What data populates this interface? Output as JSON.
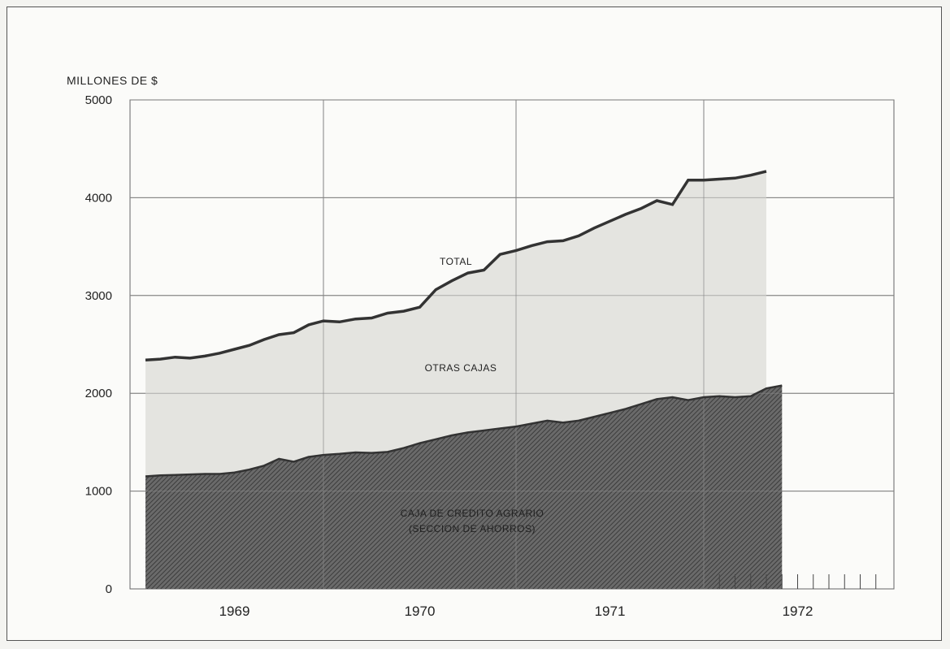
{
  "chart_data": {
    "type": "area",
    "ylabel": "MILLONES DE $",
    "ylim": [
      0,
      5000
    ],
    "yticks": [
      0,
      1000,
      2000,
      3000,
      4000,
      5000
    ],
    "ytick_labels": [
      "0",
      "1000",
      "2000",
      "3000",
      "4000",
      "5000"
    ],
    "x_unit": "months (Jan 1969 = 0)",
    "xlim": [
      0,
      48
    ],
    "year_labels": [
      "1969",
      "1970",
      "1971",
      "1972"
    ],
    "grid": true,
    "series": [
      {
        "name": "CAJA DE CREDITO AGRARIO",
        "label_lines": [
          "CAJA DE CREDITO AGRARIO",
          "(SECCION DE AHORROS)"
        ],
        "fill": "#4a4a4a",
        "values": [
          [
            0,
            1150
          ],
          [
            1,
            1160
          ],
          [
            2,
            1165
          ],
          [
            3,
            1170
          ],
          [
            4,
            1175
          ],
          [
            5,
            1175
          ],
          [
            6,
            1190
          ],
          [
            7,
            1220
          ],
          [
            8,
            1260
          ],
          [
            9,
            1330
          ],
          [
            10,
            1300
          ],
          [
            11,
            1350
          ],
          [
            12,
            1370
          ],
          [
            13,
            1380
          ],
          [
            14,
            1395
          ],
          [
            15,
            1390
          ],
          [
            16,
            1400
          ],
          [
            17,
            1440
          ],
          [
            18,
            1490
          ],
          [
            19,
            1530
          ],
          [
            20,
            1570
          ],
          [
            21,
            1600
          ],
          [
            22,
            1620
          ],
          [
            23,
            1640
          ],
          [
            24,
            1660
          ],
          [
            25,
            1690
          ],
          [
            26,
            1720
          ],
          [
            27,
            1700
          ],
          [
            28,
            1720
          ],
          [
            29,
            1760
          ],
          [
            30,
            1800
          ],
          [
            31,
            1840
          ],
          [
            32,
            1890
          ],
          [
            33,
            1940
          ],
          [
            34,
            1960
          ],
          [
            35,
            1930
          ],
          [
            36,
            1960
          ],
          [
            37,
            1970
          ],
          [
            38,
            1960
          ],
          [
            39,
            1970
          ],
          [
            40,
            2050
          ],
          [
            41,
            2080
          ]
        ]
      },
      {
        "name": "OTRAS CAJAS",
        "fill": "#e4e4e0",
        "values": []
      },
      {
        "name": "TOTAL",
        "line": "#333333",
        "values": [
          [
            0,
            2340
          ],
          [
            1,
            2350
          ],
          [
            2,
            2370
          ],
          [
            3,
            2360
          ],
          [
            4,
            2380
          ],
          [
            5,
            2410
          ],
          [
            6,
            2450
          ],
          [
            7,
            2490
          ],
          [
            8,
            2550
          ],
          [
            9,
            2600
          ],
          [
            10,
            2620
          ],
          [
            11,
            2700
          ],
          [
            12,
            2740
          ],
          [
            13,
            2730
          ],
          [
            14,
            2760
          ],
          [
            15,
            2770
          ],
          [
            16,
            2820
          ],
          [
            17,
            2840
          ],
          [
            18,
            2880
          ],
          [
            19,
            3060
          ],
          [
            20,
            3150
          ],
          [
            21,
            3230
          ],
          [
            22,
            3260
          ],
          [
            23,
            3420
          ],
          [
            24,
            3460
          ],
          [
            25,
            3510
          ],
          [
            26,
            3550
          ],
          [
            27,
            3560
          ],
          [
            28,
            3610
          ],
          [
            29,
            3690
          ],
          [
            30,
            3760
          ],
          [
            31,
            3830
          ],
          [
            32,
            3890
          ],
          [
            33,
            3970
          ],
          [
            34,
            3930
          ],
          [
            35,
            4180
          ],
          [
            36,
            4180
          ],
          [
            37,
            4190
          ],
          [
            38,
            4200
          ],
          [
            39,
            4230
          ],
          [
            40,
            4270
          ]
        ]
      }
    ]
  }
}
